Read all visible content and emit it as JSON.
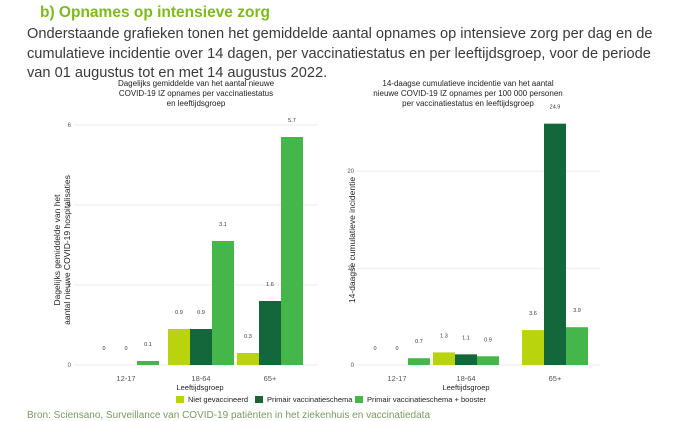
{
  "heading": "b)  Opnames op intensieve zorg",
  "intro": "Onderstaande grafieken tonen het gemiddelde aantal opnames op intensieve zorg per dag en de cumulatieve incidentie over 14 dagen, per vaccinatiestatus en per leeftijdsgroep, voor de periode van 01 augustus tot en met 14 augustus 2022.",
  "footer": "Bron: Sciensano, Surveillance van COVID-19 patiënten in het ziekenhuis en vaccinatiedata",
  "colors": {
    "Niet gevaccineerd": "#b9d30c",
    "Primair vaccinatieschema": "#13673a",
    "Primair vaccinatieschema + booster": "#45b649"
  },
  "chart_data": [
    {
      "type": "bar",
      "title_lines": [
        "Dagelijks gemiddelde van het aantal nieuwe",
        "COVID-19 IZ opnames per vaccinatiestatus",
        "en leeftijdsgroep"
      ],
      "ylabel_lines": [
        "Dagelijks gemiddelde van het",
        "aantal nieuwe COVID-19 hospitalisaties"
      ],
      "xlabel": "Leeftijdsgroep",
      "categories": [
        "12-17",
        "18-64",
        "65+"
      ],
      "ylim": [
        0,
        6.3
      ],
      "yticks": [
        0,
        2,
        4,
        6
      ],
      "series": [
        {
          "name": "Niet gevaccineerd",
          "values": [
            0,
            0.9,
            0.3
          ],
          "labels": [
            "0",
            "0.9",
            "0.3"
          ]
        },
        {
          "name": "Primair vaccinatieschema",
          "values": [
            0,
            0.9,
            1.6
          ],
          "labels": [
            "0",
            "0.9",
            "1.6"
          ]
        },
        {
          "name": "Primair vaccinatieschema + booster",
          "values": [
            0.1,
            3.1,
            5.7
          ],
          "labels": [
            "0.1",
            "3.1",
            "5.7"
          ]
        }
      ]
    },
    {
      "type": "bar",
      "title_lines": [
        "14-daagse cumulatieve incidentie van het aantal",
        "nieuwe COVID-19 IZ opnames per 100 000 personen",
        "per vaccinatiestatus en leeftijdsgroep"
      ],
      "ylabel_lines": [
        "14-daagse cumulatieve incidentie"
      ],
      "xlabel": "Leeftijdsgroep",
      "categories": [
        "12-17",
        "18-64",
        "65+"
      ],
      "ylim": [
        0,
        26
      ],
      "yticks": [
        0,
        10,
        20
      ],
      "series": [
        {
          "name": "Niet gevaccineerd",
          "values": [
            0,
            1.3,
            3.6
          ],
          "labels": [
            "0",
            "1.3",
            "3.6"
          ]
        },
        {
          "name": "Primair vaccinatieschema",
          "values": [
            0,
            1.1,
            24.9
          ],
          "labels": [
            "0",
            "1.1",
            "24.9"
          ]
        },
        {
          "name": "Primair vaccinatieschema + booster",
          "values": [
            0.7,
            0.9,
            3.9
          ],
          "labels": [
            "0.7",
            "0.9",
            "3.9"
          ]
        }
      ]
    }
  ],
  "legend": [
    "Niet gevaccineerd",
    "Primair vaccinatieschema",
    "Primair vaccinatieschema + booster"
  ]
}
